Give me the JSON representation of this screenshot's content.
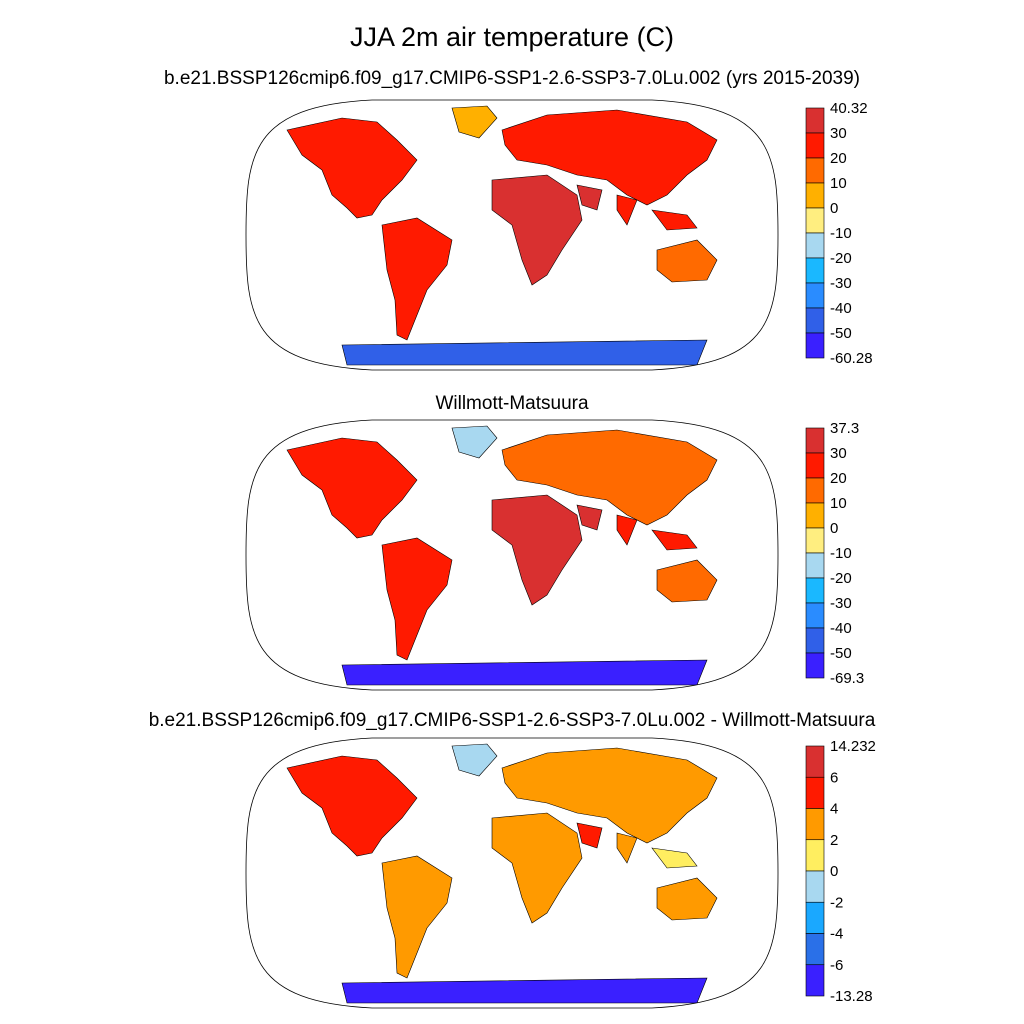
{
  "figure": {
    "title": "JJA 2m air temperature (C)"
  },
  "panels": [
    {
      "id": "model",
      "title": "b.e21.BSSP126cmip6.f09_g17.CMIP6-SSP1-2.6-SSP3-7.0Lu.002 (yrs 2015-2039)",
      "colorbar": {
        "labels": [
          "40.32",
          "30",
          "20",
          "10",
          "0",
          "-10",
          "-20",
          "-30",
          "-40",
          "-50",
          "-60.28"
        ],
        "colors": [
          "#d93030",
          "#ff1a00",
          "#ff6a00",
          "#ffb000",
          "#ffee80",
          "#a8d8f0",
          "#1ab8ff",
          "#2a8cff",
          "#3060e8",
          "#3a20ff"
        ]
      }
    },
    {
      "id": "obs",
      "title": "Willmott-Matsuura",
      "colorbar": {
        "labels": [
          "37.3",
          "30",
          "20",
          "10",
          "0",
          "-10",
          "-20",
          "-30",
          "-40",
          "-50",
          "-69.3"
        ],
        "colors": [
          "#d93030",
          "#ff1a00",
          "#ff6a00",
          "#ffb000",
          "#ffee80",
          "#a8d8f0",
          "#1ab8ff",
          "#2a8cff",
          "#3060e8",
          "#3a20ff"
        ]
      }
    },
    {
      "id": "diff",
      "title": "b.e21.BSSP126cmip6.f09_g17.CMIP6-SSP1-2.6-SSP3-7.0Lu.002 - Willmott-Matsuura",
      "colorbar": {
        "labels": [
          "14.232",
          "6",
          "4",
          "2",
          "0",
          "-2",
          "-4",
          "-6",
          "-13.28"
        ],
        "colors": [
          "#d93030",
          "#ff1a00",
          "#ff9a00",
          "#ffee60",
          "#a8d8f0",
          "#1aa8ff",
          "#2a70e8",
          "#3a20ff"
        ]
      }
    }
  ]
}
